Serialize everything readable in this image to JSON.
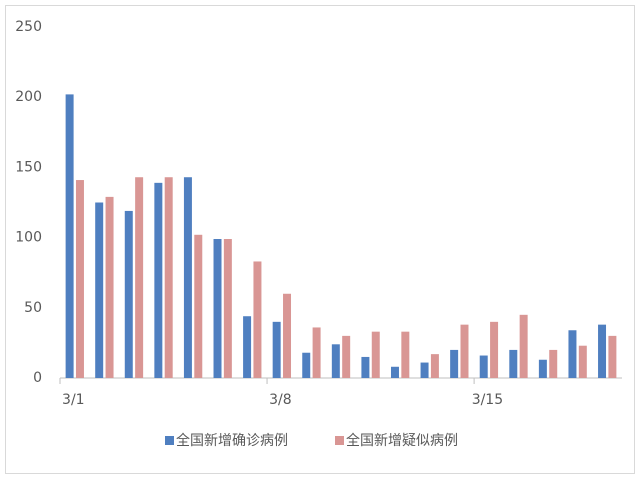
{
  "chart_data": {
    "type": "bar",
    "categories": [
      "3/1",
      null,
      null,
      null,
      null,
      null,
      null,
      "3/8",
      null,
      null,
      null,
      null,
      null,
      null,
      "3/15",
      null,
      null,
      null,
      null
    ],
    "series": [
      {
        "name": "全国新增确诊病例",
        "color": "#4f7fc0",
        "values": [
          202,
          125,
          119,
          139,
          143,
          99,
          44,
          40,
          18,
          24,
          15,
          8,
          11,
          20,
          16,
          20,
          13,
          34,
          38
        ]
      },
      {
        "name": "全国新增疑似病例",
        "color": "#d99694",
        "values": [
          141,
          129,
          143,
          143,
          102,
          99,
          83,
          60,
          36,
          30,
          33,
          33,
          17,
          38,
          40,
          45,
          20,
          23,
          30
        ]
      }
    ],
    "ylim": [
      0,
      250
    ],
    "yticks": [
      0,
      50,
      100,
      150,
      200,
      250
    ],
    "grid": false,
    "legend": "bottom"
  }
}
